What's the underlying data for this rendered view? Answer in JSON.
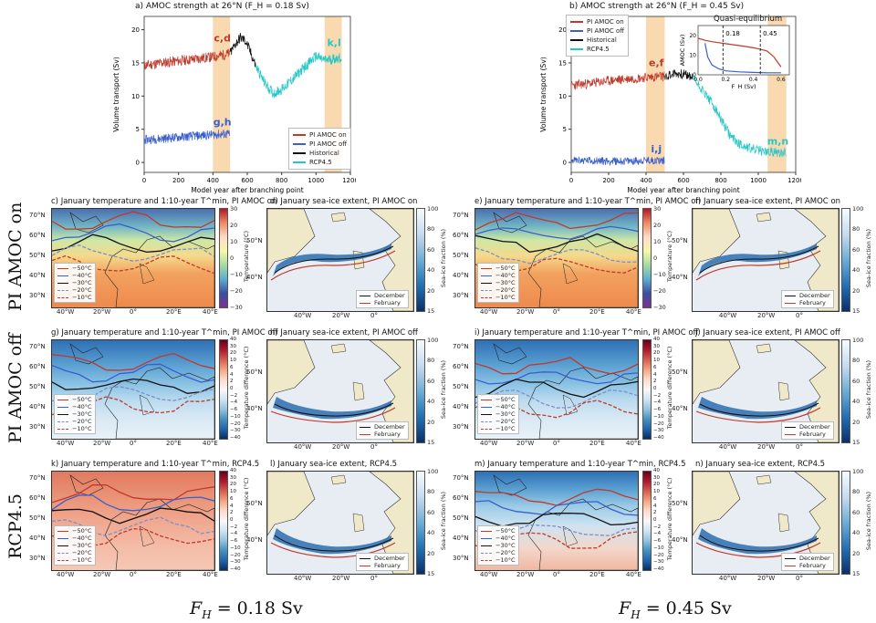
{
  "figure": {
    "row_labels": [
      "PI AMOC on",
      "PI AMOC off",
      "RCP4.5"
    ],
    "column_labels": [
      "F_H = 0.18 Sv",
      "F_H = 0.45 Sv"
    ],
    "colors": {
      "pi_on": "#c0392b",
      "pi_off": "#3a5fcd",
      "historical": "#111111",
      "rcp45": "#26c6c6",
      "highlight": "#f8d9b0"
    }
  },
  "panel_a": {
    "title": "a) AMOC strength at 26°N (F_H = 0.18 Sv)",
    "xlabel": "Model year after branching point",
    "ylabel": "Volume transport (Sv)",
    "legend": [
      "PI AMOC on",
      "PI AMOC off",
      "Historical",
      "RCP4.5"
    ],
    "annotations": [
      "c,d",
      "g,h",
      "k,l"
    ]
  },
  "panel_b": {
    "title": "b) AMOC strength at 26°N (F_H = 0.45 Sv)",
    "xlabel": "Model year after branching point",
    "ylabel": "Volume transport (Sv)",
    "legend": [
      "PI AMOC on",
      "PI AMOC off",
      "Historical",
      "RCP4.5"
    ],
    "annotations": [
      "e,f",
      "i,j",
      "m,n"
    ],
    "inset": {
      "title": "Quasi-equilibrium",
      "xlabel": "F_H (Sv)",
      "ylabel": "AMOC (Sv)",
      "marks": [
        "0.18",
        "0.45"
      ],
      "xticks": [
        "0.0",
        "0.2",
        "0.4",
        "0.6"
      ],
      "yticks": [
        "0",
        "10",
        "20"
      ]
    }
  },
  "chart_data": [
    {
      "type": "line",
      "title": "a) AMOC strength at 26°N (F_H = 0.18 Sv)",
      "xlabel": "Model year after branching point",
      "ylabel": "Volume transport (Sv)",
      "xlim": [
        0,
        1200
      ],
      "ylim": [
        -1.5,
        22
      ],
      "xticks": [
        0,
        200,
        400,
        600,
        800,
        1000,
        1200
      ],
      "yticks": [
        0,
        5,
        10,
        15,
        20
      ],
      "highlight_x": [
        [
          400,
          500
        ],
        [
          1050,
          1150
        ]
      ],
      "legend_position": "bottom-right",
      "series": [
        {
          "name": "PI AMOC on",
          "x": [
            0,
            100,
            200,
            300,
            400,
            500
          ],
          "y": [
            14.6,
            15.0,
            15.3,
            15.6,
            15.9,
            16.4
          ]
        },
        {
          "name": "PI AMOC off",
          "x": [
            0,
            100,
            200,
            300,
            400,
            500
          ],
          "y": [
            3.4,
            3.6,
            3.8,
            4.0,
            4.2,
            4.3
          ]
        },
        {
          "name": "Historical",
          "x": [
            500,
            530,
            560,
            590,
            620,
            650
          ],
          "y": [
            16.4,
            17.8,
            18.8,
            18.3,
            16.5,
            14.5
          ]
        },
        {
          "name": "RCP4.5",
          "x": [
            650,
            700,
            750,
            800,
            850,
            900,
            950,
            1000,
            1050,
            1100,
            1150
          ],
          "y": [
            14.5,
            12.0,
            10.4,
            11.0,
            12.2,
            13.5,
            14.8,
            16.0,
            15.4,
            15.6,
            15.8
          ]
        }
      ]
    },
    {
      "type": "line",
      "title": "b) AMOC strength at 26°N (F_H = 0.45 Sv)",
      "xlabel": "Model year after branching point",
      "ylabel": "Volume transport (Sv)",
      "xlim": [
        0,
        1200
      ],
      "ylim": [
        -1.5,
        22
      ],
      "xticks": [
        0,
        200,
        400,
        600,
        800,
        1000,
        1200
      ],
      "yticks": [
        0,
        5,
        10,
        15,
        20
      ],
      "highlight_x": [
        [
          400,
          500
        ],
        [
          1050,
          1150
        ]
      ],
      "legend_position": "top-left",
      "series": [
        {
          "name": "PI AMOC on",
          "x": [
            0,
            100,
            200,
            300,
            400,
            500
          ],
          "y": [
            11.6,
            11.9,
            12.3,
            12.6,
            12.8,
            13.0
          ]
        },
        {
          "name": "PI AMOC off",
          "x": [
            0,
            100,
            200,
            300,
            400,
            500
          ],
          "y": [
            0.3,
            0.3,
            0.2,
            0.2,
            0.3,
            0.3
          ]
        },
        {
          "name": "Historical",
          "x": [
            500,
            550,
            600,
            650
          ],
          "y": [
            13.0,
            13.4,
            13.3,
            12.8
          ]
        },
        {
          "name": "RCP4.5",
          "x": [
            650,
            700,
            750,
            800,
            850,
            900,
            950,
            1000,
            1050,
            1100,
            1150
          ],
          "y": [
            12.8,
            11.0,
            9.0,
            6.5,
            4.0,
            2.8,
            2.2,
            1.8,
            1.6,
            1.5,
            1.6
          ]
        }
      ]
    },
    {
      "type": "line",
      "title": "Quasi-equilibrium",
      "xlabel": "F_H (Sv)",
      "ylabel": "AMOC (Sv)",
      "xlim": [
        0,
        0.66
      ],
      "ylim": [
        0,
        25
      ],
      "series": [
        {
          "name": "PI AMOC on",
          "x": [
            0.0,
            0.05,
            0.1,
            0.15,
            0.2,
            0.25,
            0.3,
            0.35,
            0.4,
            0.45,
            0.5,
            0.55,
            0.6
          ],
          "y": [
            18.5,
            17.5,
            16.8,
            16.3,
            15.8,
            15.3,
            14.8,
            14.3,
            13.7,
            13.0,
            12.0,
            9.0,
            4.0
          ]
        },
        {
          "name": "PI AMOC off",
          "x": [
            0.6,
            0.5,
            0.4,
            0.3,
            0.2,
            0.15,
            0.1,
            0.07,
            0.05
          ],
          "y": [
            1.0,
            1.0,
            1.2,
            1.5,
            2.0,
            3.0,
            5.0,
            9.0,
            16.0
          ]
        }
      ]
    }
  ],
  "maps": [
    {
      "id": "c",
      "title": "c) January temperature and 1:10-year T^min, PI AMOC on",
      "kind": "temp"
    },
    {
      "id": "d",
      "title": "d) January sea-ice extent, PI AMOC on",
      "kind": "ice"
    },
    {
      "id": "e",
      "title": "e) January temperature and 1:10-year T^min, PI AMOC on",
      "kind": "temp"
    },
    {
      "id": "f",
      "title": "f) January sea-ice extent, PI AMOC on",
      "kind": "ice"
    },
    {
      "id": "g",
      "title": "g) January temperature and 1:10-year T^min, PI AMOC off",
      "kind": "diff"
    },
    {
      "id": "h",
      "title": "h) January sea-ice extent, PI AMOC off",
      "kind": "ice"
    },
    {
      "id": "i",
      "title": "i) January temperature and 1:10-year T^min, PI AMOC off",
      "kind": "diff"
    },
    {
      "id": "j",
      "title": "j) January sea-ice extent, PI AMOC off",
      "kind": "ice"
    },
    {
      "id": "k",
      "title": "k) January temperature and 1:10-year T^min, RCP4.5",
      "kind": "diff_warm"
    },
    {
      "id": "l",
      "title": "l) January sea-ice extent, RCP4.5",
      "kind": "ice"
    },
    {
      "id": "m",
      "title": "m) January temperature and 1:10-year T^min, RCP4.5",
      "kind": "diff_warm"
    },
    {
      "id": "n",
      "title": "n) January sea-ice extent, RCP4.5",
      "kind": "ice"
    }
  ],
  "map_axes": {
    "temp_lon_ticks": [
      "40°W",
      "20°W",
      "0°",
      "20°E",
      "40°E"
    ],
    "temp_lat_ticks": [
      "70°N",
      "60°N",
      "50°N",
      "40°N",
      "30°N"
    ],
    "ice_lon_ticks": [
      "40°W",
      "20°W",
      "0°"
    ],
    "ice_lat_ticks": [
      "50°N",
      "40°N"
    ]
  },
  "legends": {
    "temp_contours": [
      "−50°C",
      "−40°C",
      "−30°C",
      "−20°C",
      "−10°C"
    ],
    "ice": [
      "December",
      "February"
    ]
  },
  "colorbars": {
    "temp": {
      "label": "Temperature (°C)",
      "ticks": [
        "30",
        "20",
        "10",
        "0",
        "−10",
        "−20",
        "−30"
      ]
    },
    "diff": {
      "label": "Temperature difference (°C)",
      "ticks": [
        "40",
        "30",
        "20",
        "10",
        "6",
        "4",
        "2",
        "0",
        "−2",
        "−4",
        "−6",
        "−10",
        "−20",
        "−30",
        "−40"
      ]
    },
    "ice": {
      "label": "Sea-ice fraction (%)",
      "ticks": [
        "100",
        "80",
        "60",
        "40",
        "20",
        "15"
      ]
    }
  }
}
